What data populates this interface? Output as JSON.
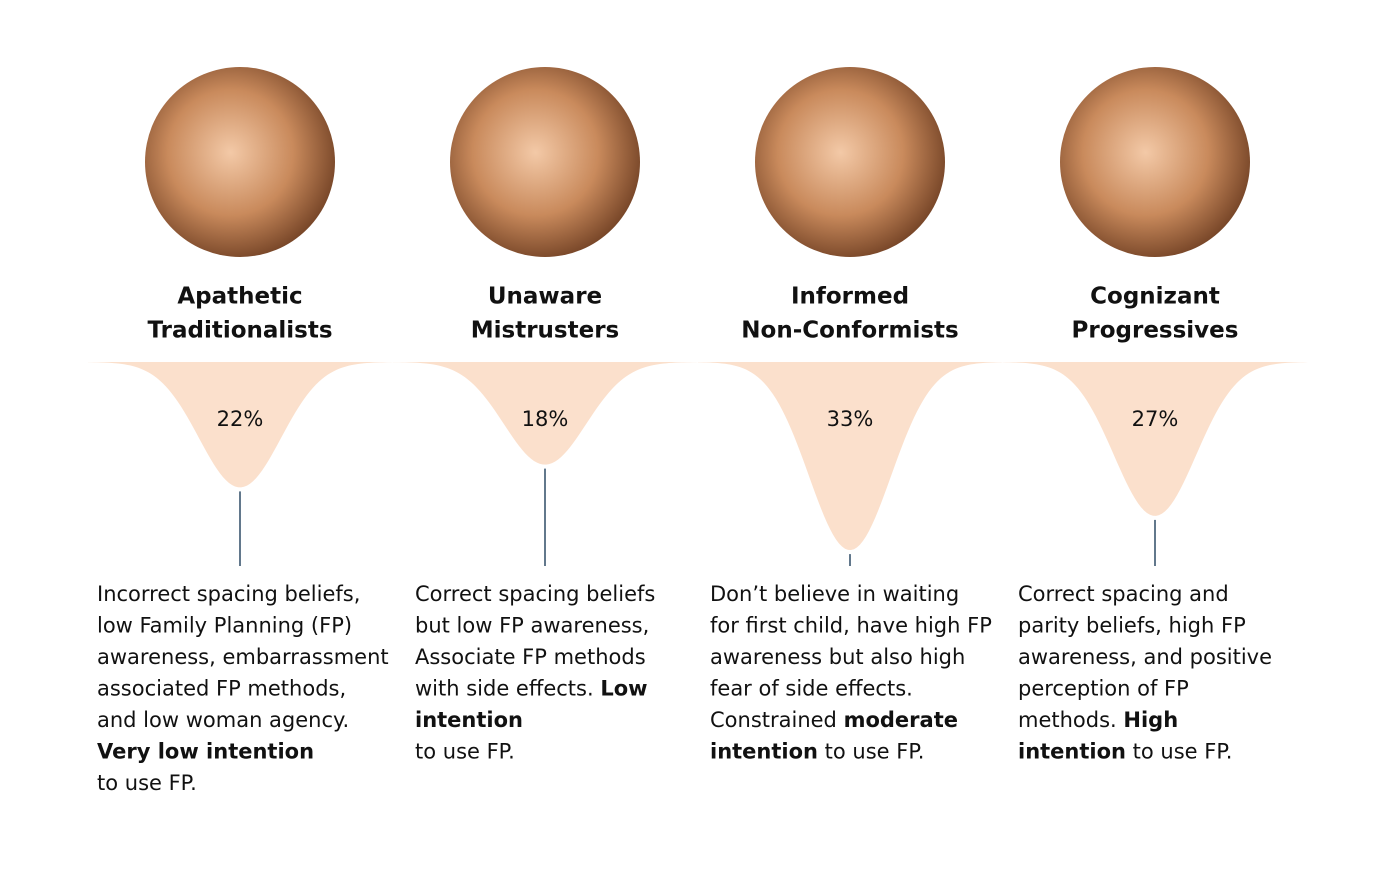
{
  "segments": [
    {
      "title": [
        "Apathetic",
        "Traditionalists"
      ],
      "value": 22,
      "value_label": "22%",
      "description": [
        [
          {
            "text": "Incorrect spacing beliefs,",
            "bold": false
          }
        ],
        [
          {
            "text": "low Family Planning (FP)",
            "bold": false
          }
        ],
        [
          {
            "text": "awareness, embarrassment",
            "bold": false
          }
        ],
        [
          {
            "text": "associated FP methods,",
            "bold": false
          }
        ],
        [
          {
            "text": "and low woman agency.",
            "bold": false
          }
        ],
        [
          {
            "text": "Very low intention",
            "bold": true
          }
        ],
        [
          {
            "text": "to use FP.",
            "bold": false
          }
        ]
      ]
    },
    {
      "title": [
        "Unaware",
        "Mistrusters"
      ],
      "value": 18,
      "value_label": "18%",
      "description": [
        [
          {
            "text": "Correct spacing beliefs",
            "bold": false
          }
        ],
        [
          {
            "text": "but low FP awareness,",
            "bold": false
          }
        ],
        [
          {
            "text": "Associate FP methods",
            "bold": false
          }
        ],
        [
          {
            "text": "with side effects. ",
            "bold": false
          },
          {
            "text": "Low",
            "bold": true
          }
        ],
        [
          {
            "text": "intention",
            "bold": true
          }
        ],
        [
          {
            "text": "to use FP.",
            "bold": false
          }
        ]
      ]
    },
    {
      "title": [
        "Informed",
        "Non-Conformists"
      ],
      "value": 33,
      "value_label": "33%",
      "description": [
        [
          {
            "text": "Don’t believe in waiting",
            "bold": false
          }
        ],
        [
          {
            "text": "for first child, have high FP",
            "bold": false
          }
        ],
        [
          {
            "text": "awareness but also high",
            "bold": false
          }
        ],
        [
          {
            "text": "fear of side effects.",
            "bold": false
          }
        ],
        [
          {
            "text": "Constrained ",
            "bold": false
          },
          {
            "text": "moderate",
            "bold": true
          }
        ],
        [
          {
            "text": "intention",
            "bold": true
          },
          {
            "text": " to use FP.",
            "bold": false
          }
        ]
      ]
    },
    {
      "title": [
        "Cognizant",
        "Progressives"
      ],
      "value": 27,
      "value_label": "27%",
      "description": [
        [
          {
            "text": "Correct spacing and",
            "bold": false
          }
        ],
        [
          {
            "text": "parity beliefs, high FP",
            "bold": false
          }
        ],
        [
          {
            "text": "awareness, and positive",
            "bold": false
          }
        ],
        [
          {
            "text": "perception of FP",
            "bold": false
          }
        ],
        [
          {
            "text": "methods. ",
            "bold": false
          },
          {
            "text": "High",
            "bold": true
          }
        ],
        [
          {
            "text": "intention",
            "bold": true
          },
          {
            "text": " to use FP.",
            "bold": false
          }
        ]
      ]
    }
  ]
}
